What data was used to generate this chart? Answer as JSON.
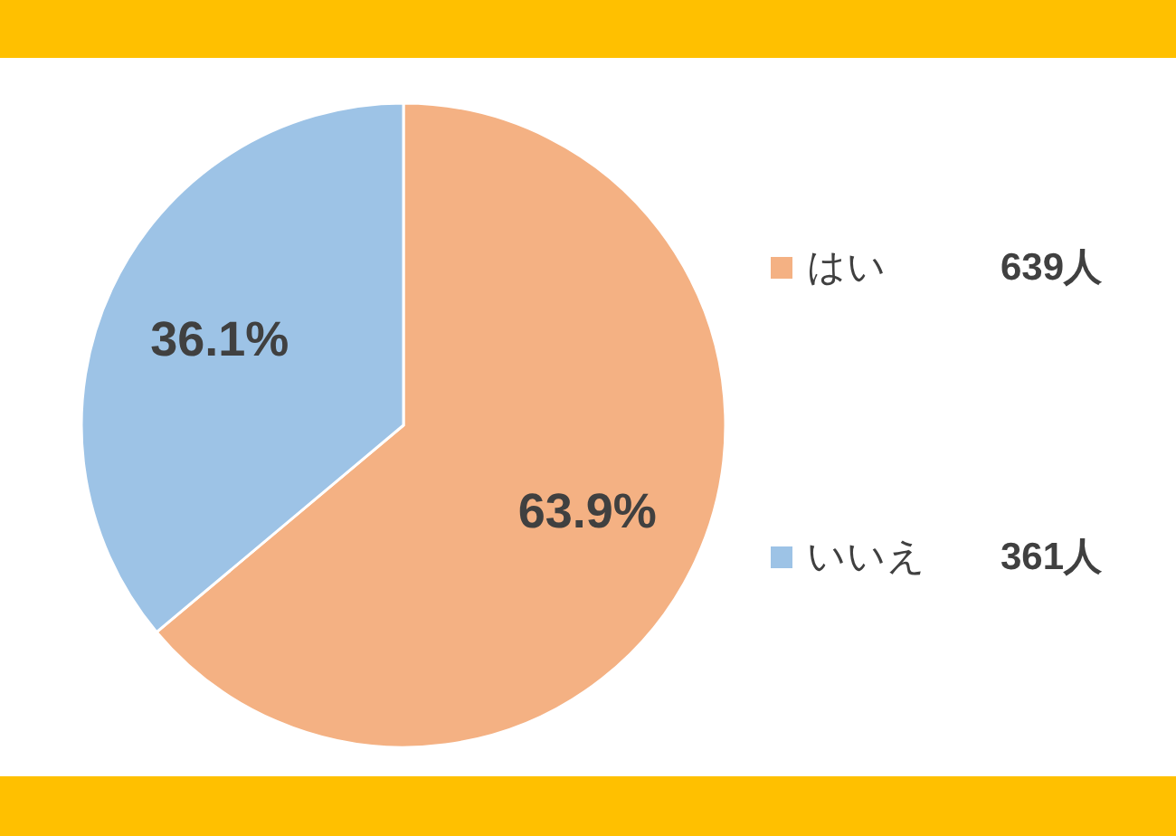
{
  "chart_data": {
    "type": "pie",
    "categories": [
      "はい",
      "いいえ"
    ],
    "values": [
      63.9,
      36.1
    ],
    "colors": [
      "#f4b183",
      "#9dc3e6"
    ],
    "value_labels": [
      "63.9%",
      "36.1%"
    ],
    "annotations": [
      "639人",
      "361人"
    ],
    "legend": "right"
  }
}
